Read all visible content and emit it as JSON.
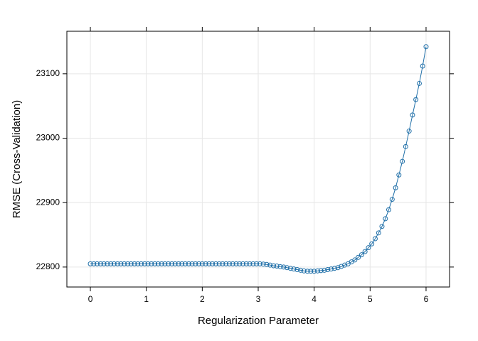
{
  "chart_data": {
    "type": "line",
    "xlabel": "Regularization Parameter",
    "ylabel": "RMSE (Cross-Validation)",
    "x": [
      0,
      0.061,
      0.121,
      0.182,
      0.242,
      0.303,
      0.364,
      0.424,
      0.485,
      0.545,
      0.606,
      0.667,
      0.727,
      0.788,
      0.848,
      0.909,
      0.97,
      1.03,
      1.091,
      1.152,
      1.212,
      1.273,
      1.333,
      1.394,
      1.455,
      1.515,
      1.576,
      1.636,
      1.697,
      1.758,
      1.818,
      1.879,
      1.939,
      2.0,
      2.061,
      2.121,
      2.182,
      2.242,
      2.303,
      2.364,
      2.424,
      2.485,
      2.545,
      2.606,
      2.667,
      2.727,
      2.788,
      2.848,
      2.909,
      2.97,
      3.03,
      3.091,
      3.152,
      3.212,
      3.273,
      3.333,
      3.394,
      3.455,
      3.515,
      3.576,
      3.636,
      3.697,
      3.758,
      3.818,
      3.879,
      3.939,
      4.0,
      4.061,
      4.121,
      4.182,
      4.242,
      4.303,
      4.364,
      4.424,
      4.485,
      4.545,
      4.606,
      4.667,
      4.727,
      4.788,
      4.848,
      4.909,
      4.97,
      5.03,
      5.091,
      5.152,
      5.212,
      5.273,
      5.333,
      5.394,
      5.455,
      5.515,
      5.576,
      5.636,
      5.697,
      5.758,
      5.818,
      5.879,
      5.939,
      6.0
    ],
    "series": [
      {
        "color": "#1f6fa8",
        "values": [
          22805,
          22805,
          22805,
          22805,
          22805,
          22805,
          22805,
          22805,
          22805,
          22805,
          22805,
          22805,
          22805,
          22805,
          22805,
          22805,
          22805,
          22805,
          22805,
          22805,
          22805,
          22805,
          22805,
          22805,
          22805,
          22805,
          22805,
          22805,
          22805,
          22805,
          22805,
          22805,
          22805,
          22805,
          22805,
          22805,
          22805,
          22805,
          22805,
          22805,
          22805,
          22805,
          22805,
          22805,
          22805,
          22805,
          22805,
          22805,
          22805,
          22805,
          22805,
          22804.5,
          22804,
          22803,
          22802,
          22801.5,
          22800.5,
          22800,
          22799,
          22798,
          22797,
          22796,
          22795,
          22794,
          22793.5,
          22793.5,
          22793.5,
          22794,
          22794.5,
          22795,
          22796,
          22797,
          22798,
          22799,
          22801,
          22803,
          22805,
          22808,
          22811,
          22815,
          22819,
          22824,
          22830,
          22836,
          22844,
          22853,
          22863,
          22875,
          22889,
          22905,
          22923,
          22943,
          22964,
          22987,
          23011,
          23036,
          23060,
          23085,
          23112,
          23142
        ]
      }
    ],
    "xlim": [
      -0.42,
      6.42
    ],
    "xticks": [
      0,
      1,
      2,
      3,
      4,
      5,
      6
    ],
    "ylim": [
      22769,
      23166
    ],
    "yticks": [
      22800,
      22900,
      23000,
      23100
    ],
    "grid": true
  }
}
